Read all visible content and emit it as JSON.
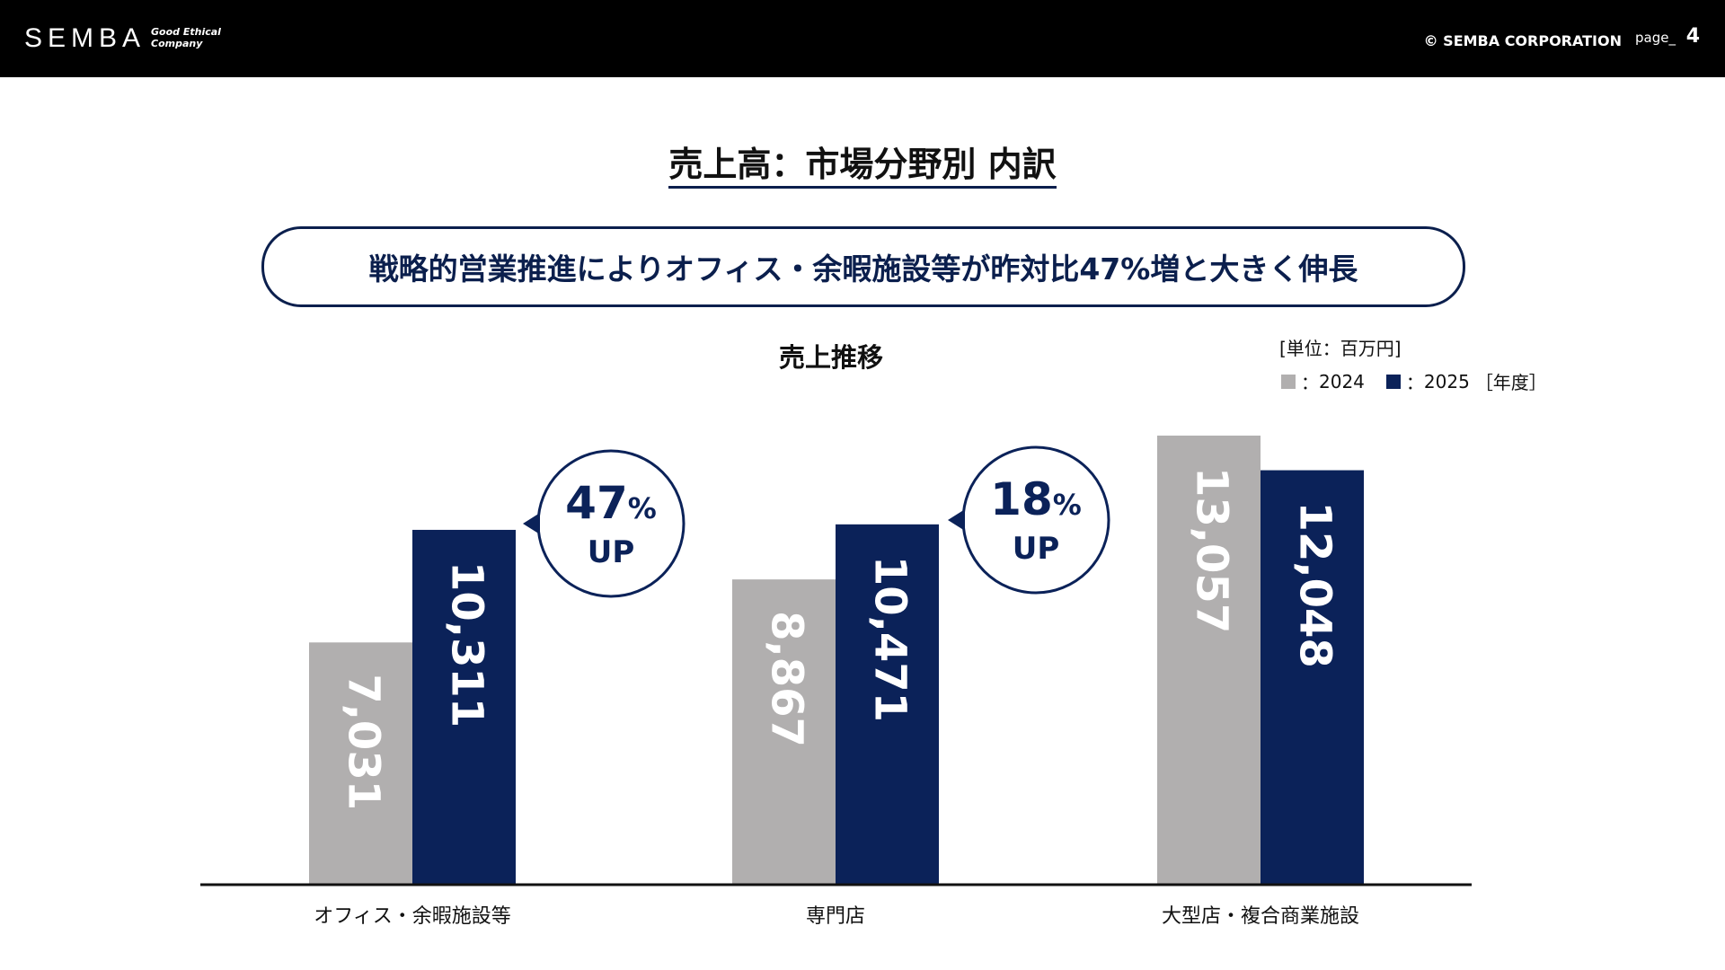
{
  "header": {
    "logo": "SEMBA",
    "tagline": "Good Ethical\nCompany",
    "copyright": "© SEMBA CORPORATION",
    "page_label": "page_",
    "page_number": "4"
  },
  "title": "売上高：市場分野別 内訳",
  "headline": "戦略的営業推進によりオフィス・余暇施設等が昨対比47%増と大きく伸長",
  "chart_data": {
    "type": "bar",
    "title": "売上推移",
    "unit": "[単位：百万円]",
    "legend_suffix": "［年度］",
    "categories": [
      "オフィス・余暇施設等",
      "専門店",
      "大型店・複合商業施設"
    ],
    "series": [
      {
        "name": "2024",
        "color": "#b1afaf",
        "values": [
          7031,
          8867,
          13057
        ],
        "labels": [
          "7,031",
          "8,867",
          "13,057"
        ]
      },
      {
        "name": "2025",
        "color": "#0b2259",
        "values": [
          10311,
          10471,
          12048
        ],
        "labels": [
          "10,311",
          "10,471",
          "12,048"
        ]
      }
    ],
    "callouts": [
      {
        "category": "オフィス・余暇施設等",
        "value": "47",
        "pct": "%",
        "text": "UP"
      },
      {
        "category": "専門店",
        "value": "18",
        "pct": "%",
        "text": "UP"
      }
    ],
    "ylim": [
      0,
      13057
    ]
  }
}
